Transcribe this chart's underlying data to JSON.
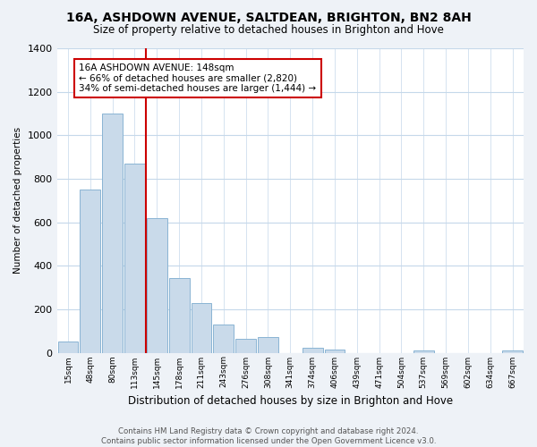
{
  "title": "16A, ASHDOWN AVENUE, SALTDEAN, BRIGHTON, BN2 8AH",
  "subtitle": "Size of property relative to detached houses in Brighton and Hove",
  "xlabel": "Distribution of detached houses by size in Brighton and Hove",
  "ylabel": "Number of detached properties",
  "bar_labels": [
    "15sqm",
    "48sqm",
    "80sqm",
    "113sqm",
    "145sqm",
    "178sqm",
    "211sqm",
    "243sqm",
    "276sqm",
    "308sqm",
    "341sqm",
    "374sqm",
    "406sqm",
    "439sqm",
    "471sqm",
    "504sqm",
    "537sqm",
    "569sqm",
    "602sqm",
    "634sqm",
    "667sqm"
  ],
  "bar_values": [
    50,
    750,
    1100,
    870,
    620,
    345,
    228,
    130,
    65,
    70,
    0,
    22,
    15,
    0,
    0,
    0,
    10,
    0,
    0,
    0,
    10
  ],
  "bar_color": "#c9daea",
  "bar_edge_color": "#8ab4d4",
  "vline_x": 3.5,
  "vline_color": "#cc0000",
  "ylim": [
    0,
    1400
  ],
  "yticks": [
    0,
    200,
    400,
    600,
    800,
    1000,
    1200,
    1400
  ],
  "annotation_text": "16A ASHDOWN AVENUE: 148sqm\n← 66% of detached houses are smaller (2,820)\n34% of semi-detached houses are larger (1,444) →",
  "footer_line1": "Contains HM Land Registry data © Crown copyright and database right 2024.",
  "footer_line2": "Contains public sector information licensed under the Open Government Licence v3.0.",
  "background_color": "#eef2f7",
  "plot_background": "#ffffff",
  "grid_color": "#c5d8ea"
}
